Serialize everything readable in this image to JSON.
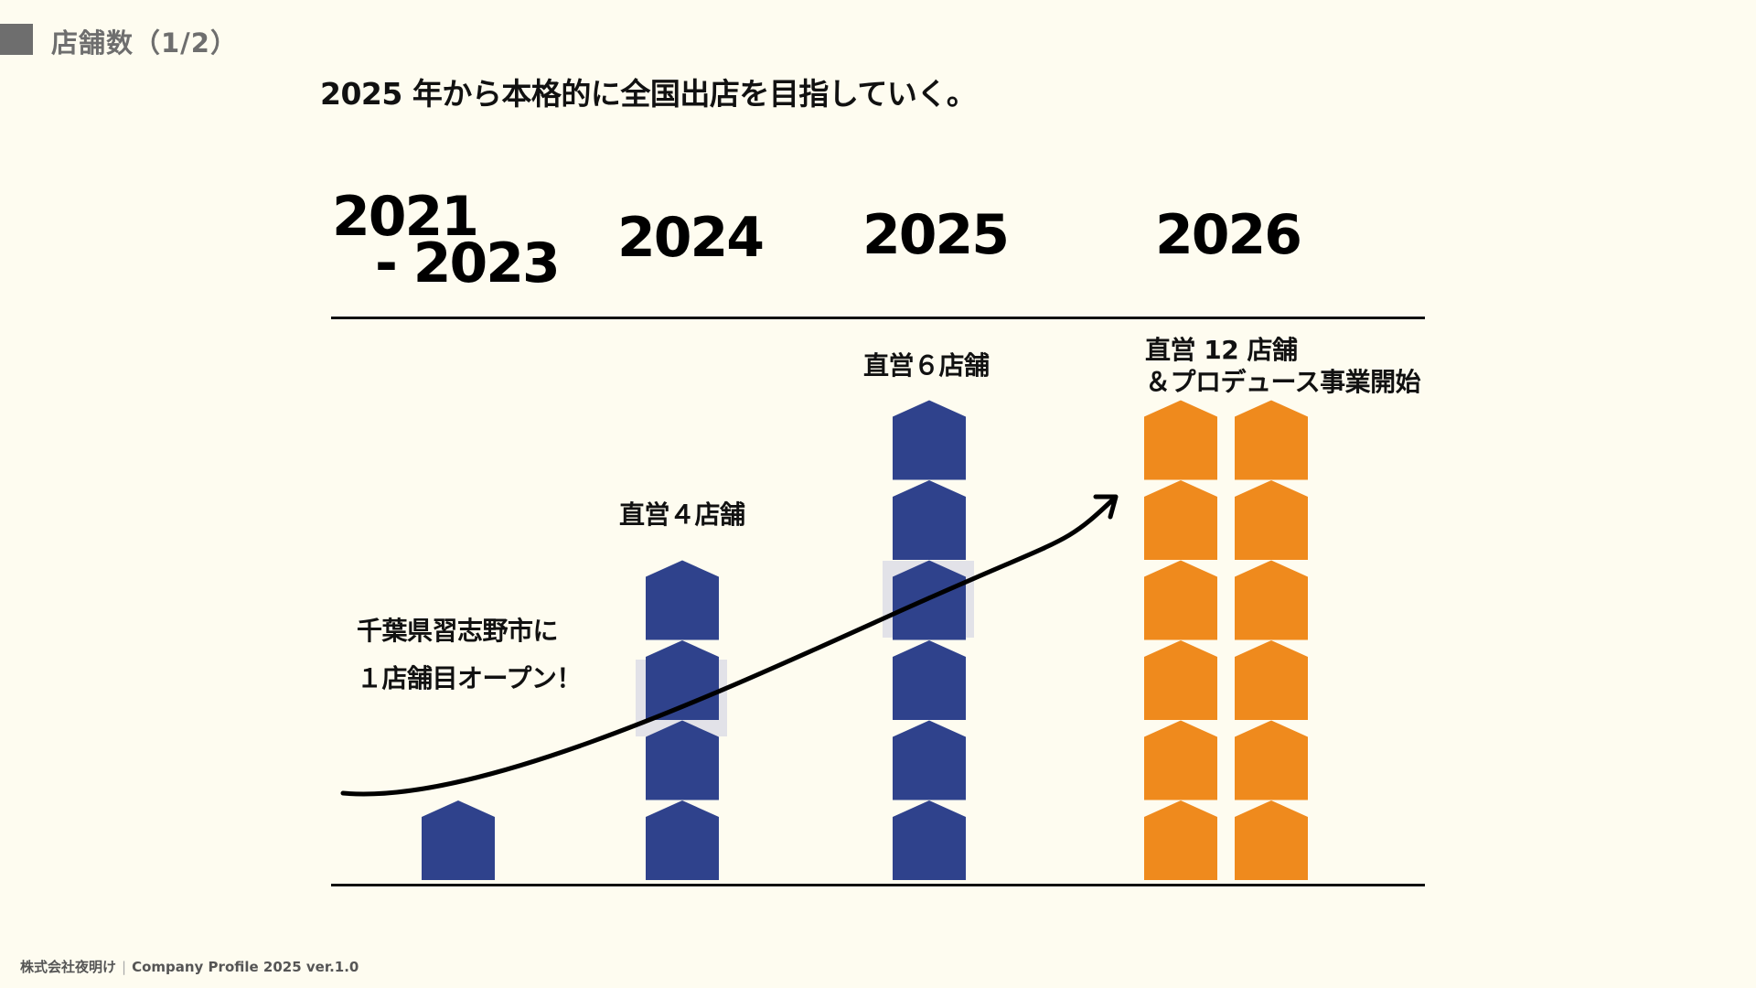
{
  "header": {
    "section_title": "店舗数（1/2）",
    "headline": "2025 年から本格的に全国出店を目指していく。"
  },
  "timeline": {
    "years": [
      {
        "line1": "2021",
        "line2": "- 2023"
      },
      {
        "line1": "2024"
      },
      {
        "line1": "2025"
      },
      {
        "line1": "2026"
      }
    ]
  },
  "captions": {
    "y2021_line1": "千葉県習志野市に",
    "y2021_line2": "１店舗目オープン！",
    "y2024": "直営４店舗",
    "y2025": "直営６店舗",
    "y2026_line1": "直営 12 店舗",
    "y2026_line2": "＆プロデュース事業開始"
  },
  "chart_data": {
    "type": "bar",
    "categories": [
      "2021 - 2023",
      "2024",
      "2025",
      "2026"
    ],
    "values": [
      1,
      4,
      6,
      12
    ],
    "columns_per_category": [
      1,
      1,
      1,
      2
    ],
    "colors": {
      "direct": "#2f428c",
      "produce": "#ef8a1d",
      "highlight": "#e2e2e8",
      "trend": "#000000"
    },
    "category_colors": [
      "#2f428c",
      "#2f428c",
      "#2f428c",
      "#ef8a1d"
    ],
    "trend_arrow": true
  },
  "footer": {
    "company": "株式会社夜明け",
    "separator": "|",
    "doc": "Company Profile 2025 ver.1.0"
  }
}
